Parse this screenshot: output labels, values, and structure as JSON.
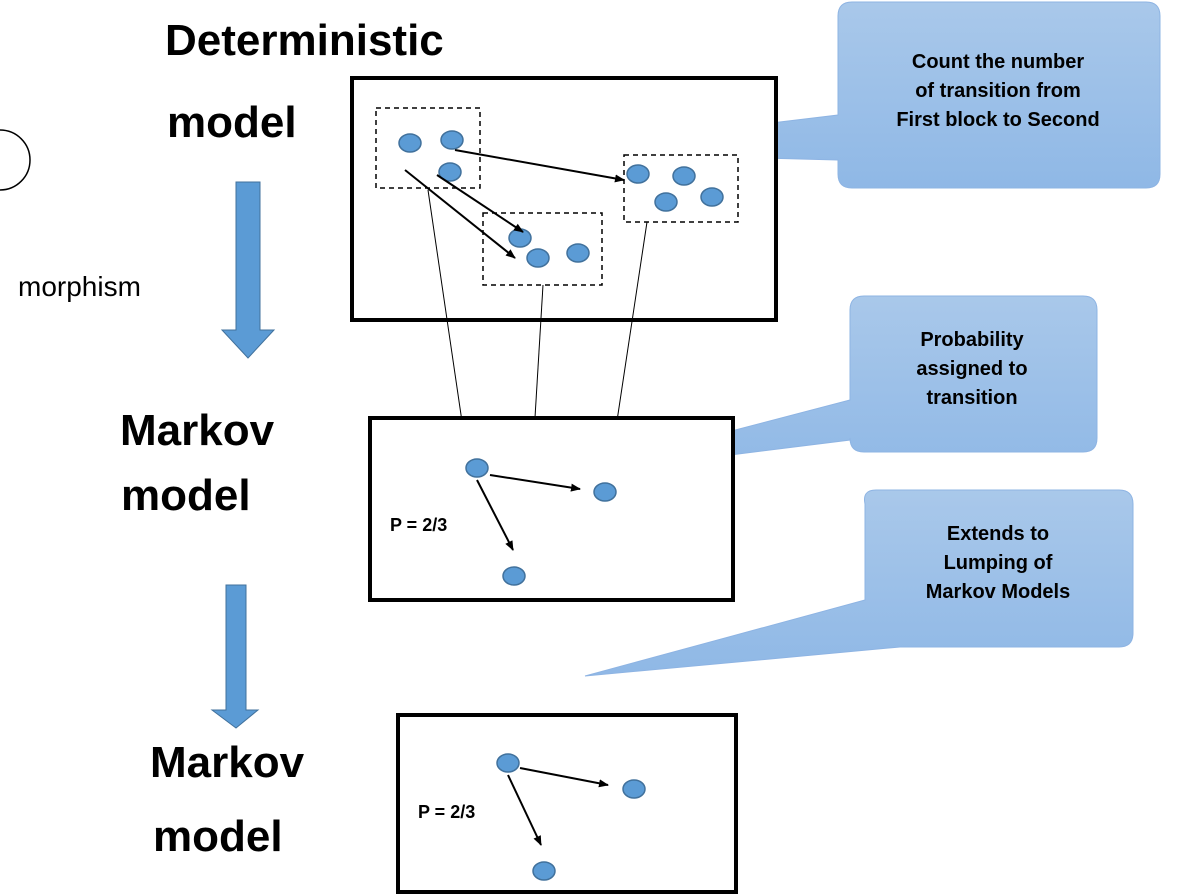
{
  "levels": [
    {
      "title": [
        "Deterministic",
        "model"
      ]
    },
    {
      "title": [
        "Markov",
        "model"
      ],
      "probability": "P = 2/3"
    },
    {
      "title": [
        "Markov",
        "model"
      ],
      "probability": "P = 2/3"
    }
  ],
  "morphism_label": "morphism",
  "callouts": [
    {
      "lines": [
        "Count the number",
        "of transition from",
        "First block to Second"
      ]
    },
    {
      "lines": [
        "Probability",
        "assigned to",
        "transition"
      ]
    },
    {
      "lines": [
        "Extends to",
        "Lumping of",
        "Markov Models"
      ]
    }
  ]
}
